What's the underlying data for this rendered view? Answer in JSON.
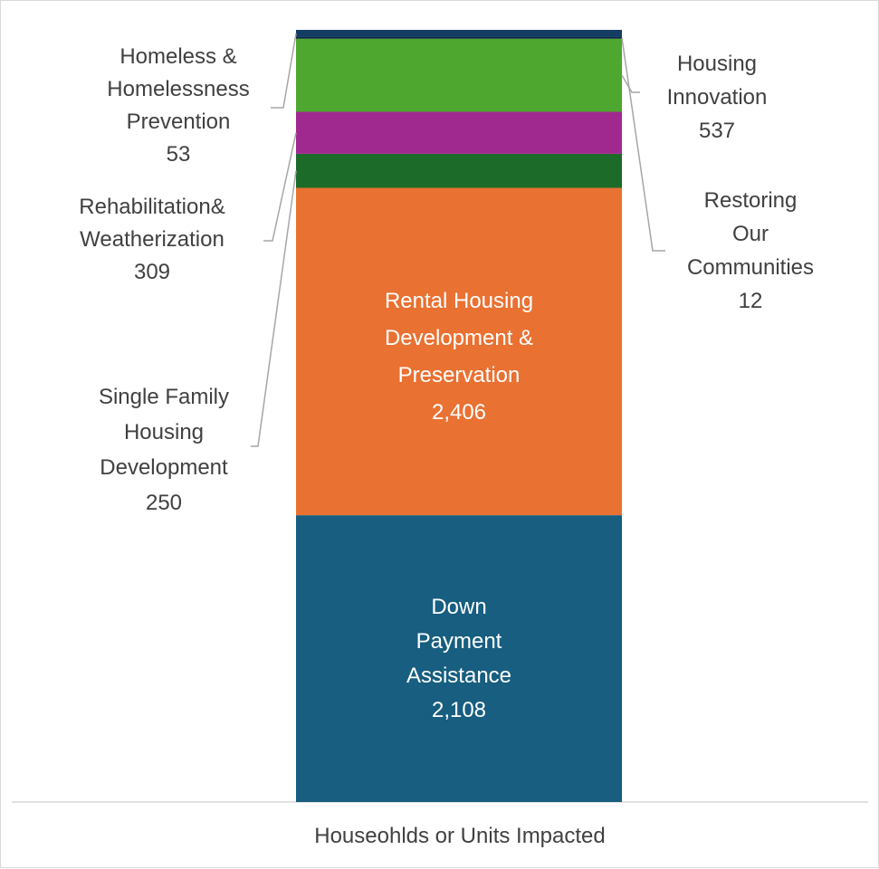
{
  "chart_data": {
    "type": "bar",
    "stacked": true,
    "categories": [
      "Houseohlds or Units Impacted"
    ],
    "series": [
      {
        "name": "Down Payment Assistance",
        "label_lines": [
          "Down",
          "Payment",
          "Assistance"
        ],
        "value": 2108,
        "value_text": "2,108",
        "color": "#175e80"
      },
      {
        "name": "Rental Housing Development & Preservation",
        "label_lines": [
          "Rental Housing",
          "Development &",
          "Preservation"
        ],
        "value": 2406,
        "value_text": "2,406",
        "color": "#e97132"
      },
      {
        "name": "Single Family Housing Development",
        "label_lines": [
          "Single Family",
          "Housing",
          "Development"
        ],
        "value": 250,
        "value_text": "250",
        "color": "#1c6b28"
      },
      {
        "name": "Rehabilitation& Weatherization",
        "label_lines": [
          "Rehabilitation&",
          "Weatherization"
        ],
        "value": 309,
        "value_text": "309",
        "color": "#a0298f"
      },
      {
        "name": "Housing Innovation",
        "label_lines": [
          "Housing",
          "Innovation"
        ],
        "value": 537,
        "value_text": "537",
        "color": "#4ea72e"
      },
      {
        "name": "Restoring Our Communities",
        "label_lines": [
          "Restoring",
          "Our",
          "Communities"
        ],
        "value": 12,
        "value_text": "12",
        "color": "#0e2841"
      },
      {
        "name": "Homeless & Homelessness Prevention",
        "label_lines": [
          "Homeless &",
          "Homelessness",
          "Prevention"
        ],
        "value": 53,
        "value_text": "53",
        "color": "#153d63"
      }
    ],
    "xlabel": "",
    "ylabel": "",
    "grid": false,
    "legend": "none"
  }
}
